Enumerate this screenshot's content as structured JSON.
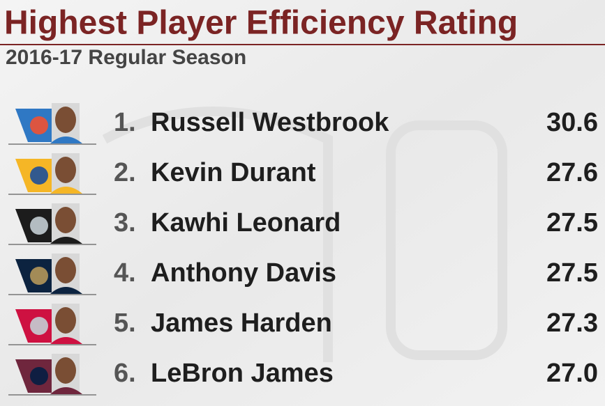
{
  "header": {
    "title": "Highest Player Efficiency Rating",
    "subtitle": "2016-17 Regular Season"
  },
  "table": {
    "rows": [
      [
        "1.",
        "Russell Westbrook",
        "30.6"
      ],
      [
        "2.",
        "Kevin Durant",
        "27.6"
      ],
      [
        "3.",
        "Kawhi Leonard",
        "27.5"
      ],
      [
        "4.",
        "Anthony Davis",
        "27.5"
      ],
      [
        "5.",
        "James Harden",
        "27.3"
      ],
      [
        "6.",
        "LeBron James",
        "27.0"
      ]
    ]
  }
}
